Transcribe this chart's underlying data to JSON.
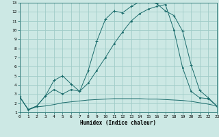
{
  "xlabel": "Humidex (Indice chaleur)",
  "bg_color": "#cce8e4",
  "grid_color": "#a0ccc8",
  "line_color": "#1a6b6b",
  "xlim": [
    0,
    23
  ],
  "ylim": [
    1,
    13
  ],
  "xticks": [
    0,
    1,
    2,
    3,
    4,
    5,
    6,
    7,
    8,
    9,
    10,
    11,
    12,
    13,
    14,
    15,
    16,
    17,
    18,
    19,
    20,
    21,
    22,
    23
  ],
  "yticks": [
    1,
    2,
    3,
    4,
    5,
    6,
    7,
    8,
    9,
    10,
    11,
    12,
    13
  ],
  "line1_x": [
    0,
    1,
    2,
    3,
    4,
    5,
    6,
    7,
    8,
    9,
    10,
    11,
    12,
    13,
    14,
    15,
    16,
    17,
    18,
    19,
    20,
    21,
    22,
    23
  ],
  "line1_y": [
    2.7,
    1.3,
    1.6,
    1.7,
    1.85,
    2.05,
    2.15,
    2.25,
    2.35,
    2.4,
    2.45,
    2.5,
    2.5,
    2.5,
    2.5,
    2.45,
    2.45,
    2.4,
    2.35,
    2.3,
    2.2,
    2.05,
    1.9,
    1.7
  ],
  "line2_x": [
    0,
    1,
    2,
    3,
    4,
    5,
    6,
    7,
    8,
    9,
    10,
    11,
    12,
    13,
    14,
    15,
    16,
    17,
    18,
    19,
    20,
    21,
    22,
    23
  ],
  "line2_y": [
    2.7,
    1.3,
    1.7,
    2.8,
    4.5,
    5.0,
    4.1,
    3.3,
    5.6,
    8.8,
    11.2,
    12.1,
    11.9,
    12.6,
    13.1,
    13.1,
    12.9,
    12.1,
    11.6,
    9.9,
    6.2,
    3.4,
    2.6,
    1.7
  ],
  "line3_x": [
    0,
    1,
    2,
    3,
    4,
    5,
    6,
    7,
    8,
    9,
    10,
    11,
    12,
    13,
    14,
    15,
    16,
    17,
    18,
    19,
    20,
    21,
    22,
    23
  ],
  "line3_y": [
    2.7,
    1.3,
    1.7,
    2.8,
    3.5,
    3.0,
    3.5,
    3.3,
    4.2,
    5.6,
    7.0,
    8.5,
    9.8,
    11.0,
    11.8,
    12.3,
    12.6,
    12.8,
    10.0,
    5.9,
    3.3,
    2.6,
    2.5,
    1.7
  ],
  "line2_markers_x": [
    0,
    1,
    4,
    5,
    6,
    7,
    9,
    10,
    11,
    12,
    13,
    14,
    15,
    16,
    17,
    18,
    19,
    20,
    21,
    22,
    23
  ],
  "line3_markers_x": [
    0,
    1,
    3,
    4,
    5,
    6,
    7,
    8,
    9,
    10,
    11,
    12,
    13,
    14,
    15,
    16,
    17,
    19,
    20,
    21,
    23
  ]
}
